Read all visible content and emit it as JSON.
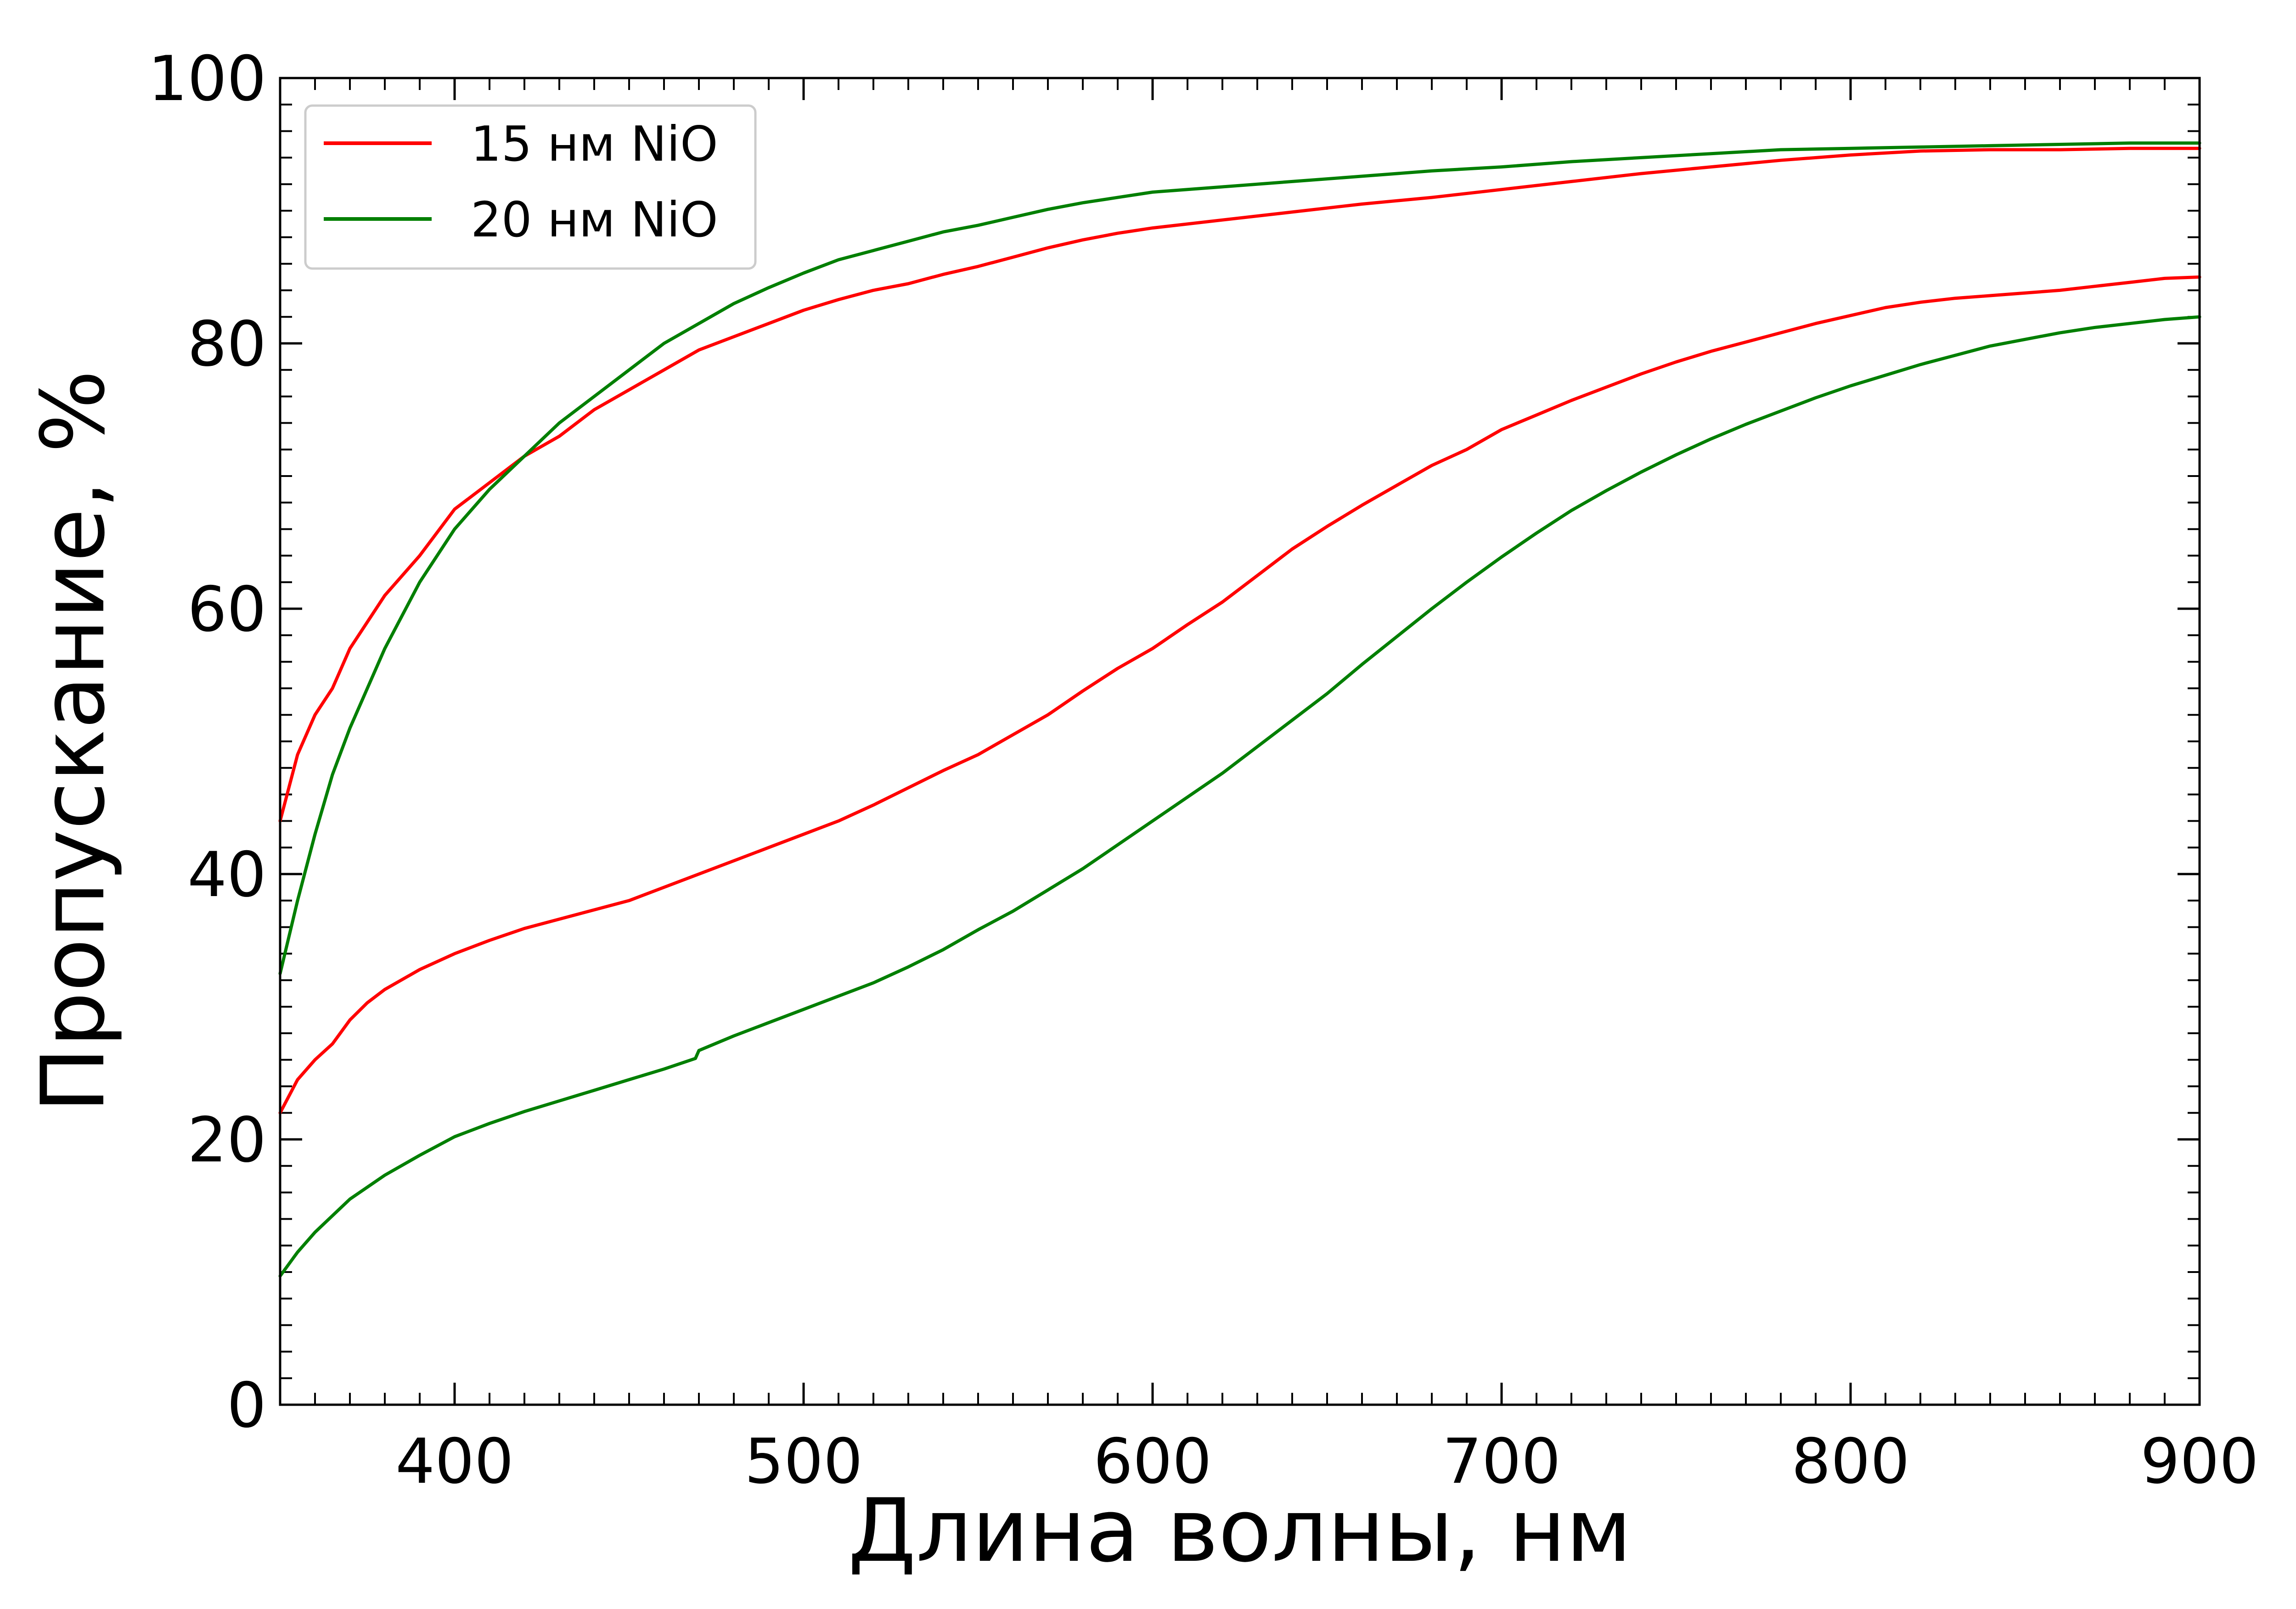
{
  "chart_data": {
    "type": "line",
    "title": "",
    "xlabel": "Длина волны, нм",
    "ylabel": "Пропускание, %",
    "xlim": [
      350,
      900
    ],
    "ylim": [
      0,
      100
    ],
    "x_ticks": [
      400,
      500,
      600,
      700,
      800,
      900
    ],
    "y_ticks": [
      0,
      20,
      40,
      60,
      80,
      100
    ],
    "x_tick_labels": [
      "400",
      "500",
      "600",
      "700",
      "800",
      "900"
    ],
    "y_tick_labels": [
      "0",
      "20",
      "40",
      "60",
      "80",
      "100"
    ],
    "grid": false,
    "legend_position": "top-left",
    "legend": [
      {
        "label": "15 нм NiO",
        "color": "#ff0000"
      },
      {
        "label": "20 нм NiO",
        "color": "#007f00"
      }
    ],
    "series": [
      {
        "color": "#ff0000",
        "x": [
          350,
          355,
          360,
          365,
          370,
          375,
          380,
          390,
          400,
          410,
          420,
          430,
          440,
          450,
          460,
          470,
          480,
          490,
          500,
          510,
          520,
          530,
          540,
          550,
          560,
          570,
          580,
          590,
          600,
          620,
          640,
          660,
          680,
          700,
          720,
          740,
          760,
          780,
          800,
          820,
          840,
          860,
          880,
          890,
          900
        ],
        "y": [
          44,
          49,
          52,
          54,
          57,
          59,
          61,
          64,
          67.5,
          69.5,
          71.5,
          73,
          75,
          76.5,
          78,
          79.5,
          80.5,
          81.5,
          82.5,
          83.3,
          84,
          84.5,
          85.2,
          85.8,
          86.5,
          87.2,
          87.8,
          88.3,
          88.7,
          89.3,
          89.9,
          90.5,
          91,
          91.6,
          92.2,
          92.8,
          93.3,
          93.8,
          94.2,
          94.5,
          94.6,
          94.6,
          94.7,
          94.7,
          94.7
        ]
      },
      {
        "color": "#ff0000",
        "x": [
          350,
          355,
          360,
          365,
          370,
          375,
          380,
          390,
          400,
          410,
          420,
          430,
          440,
          450,
          460,
          470,
          480,
          490,
          500,
          510,
          520,
          530,
          540,
          550,
          560,
          570,
          580,
          590,
          600,
          610,
          620,
          630,
          640,
          650,
          660,
          670,
          680,
          690,
          700,
          710,
          720,
          730,
          740,
          750,
          760,
          770,
          780,
          790,
          800,
          810,
          820,
          830,
          840,
          850,
          860,
          870,
          880,
          890,
          900
        ],
        "y": [
          22,
          24.5,
          26,
          27.2,
          29,
          30.3,
          31.3,
          32.8,
          34,
          35,
          35.9,
          36.6,
          37.3,
          38,
          39,
          40,
          41,
          42,
          43,
          44,
          45.2,
          46.5,
          47.8,
          49,
          50.5,
          52,
          53.8,
          55.5,
          57,
          58.8,
          60.5,
          62.5,
          64.5,
          66.2,
          67.8,
          69.3,
          70.8,
          72,
          73.5,
          74.6,
          75.7,
          76.7,
          77.7,
          78.6,
          79.4,
          80.1,
          80.8,
          81.5,
          82.1,
          82.7,
          83.1,
          83.4,
          83.6,
          83.8,
          84,
          84.3,
          84.6,
          84.9,
          85
        ]
      },
      {
        "color": "#007f00",
        "x": [
          350,
          355,
          360,
          365,
          370,
          375,
          380,
          390,
          400,
          410,
          420,
          430,
          440,
          450,
          460,
          470,
          480,
          490,
          500,
          510,
          520,
          530,
          540,
          550,
          560,
          570,
          580,
          590,
          600,
          620,
          640,
          660,
          680,
          700,
          720,
          740,
          760,
          780,
          800,
          820,
          840,
          860,
          880,
          890,
          900
        ],
        "y": [
          32.5,
          38,
          43,
          47.5,
          51,
          54,
          57,
          62,
          66,
          69,
          71.5,
          74,
          76,
          78,
          80,
          81.5,
          83,
          84.2,
          85.3,
          86.3,
          87,
          87.7,
          88.4,
          88.9,
          89.5,
          90.1,
          90.6,
          91,
          91.4,
          91.8,
          92.2,
          92.6,
          93,
          93.3,
          93.7,
          94,
          94.3,
          94.6,
          94.7,
          94.8,
          94.9,
          95,
          95.1,
          95.1,
          95.1
        ]
      },
      {
        "color": "#007f00",
        "x": [
          350,
          355,
          360,
          370,
          380,
          390,
          400,
          410,
          420,
          430,
          440,
          450,
          460,
          469,
          470,
          480,
          490,
          500,
          510,
          520,
          530,
          540,
          550,
          560,
          570,
          580,
          590,
          600,
          610,
          620,
          630,
          640,
          650,
          660,
          670,
          680,
          690,
          700,
          710,
          720,
          730,
          740,
          750,
          760,
          770,
          780,
          790,
          800,
          810,
          820,
          830,
          840,
          850,
          860,
          870,
          880,
          890,
          900
        ],
        "y": [
          9.7,
          11.5,
          13,
          15.5,
          17.3,
          18.8,
          20.2,
          21.2,
          22.1,
          22.9,
          23.7,
          24.5,
          25.3,
          26.1,
          26.7,
          27.8,
          28.8,
          29.8,
          30.8,
          31.8,
          33,
          34.3,
          35.8,
          37.2,
          38.8,
          40.4,
          42.2,
          44,
          45.8,
          47.6,
          49.6,
          51.6,
          53.6,
          55.8,
          57.9,
          60,
          62,
          63.9,
          65.7,
          67.4,
          68.9,
          70.3,
          71.6,
          72.8,
          73.9,
          74.9,
          75.9,
          76.8,
          77.6,
          78.4,
          79.1,
          79.8,
          80.3,
          80.8,
          81.2,
          81.5,
          81.8,
          82
        ]
      }
    ]
  }
}
